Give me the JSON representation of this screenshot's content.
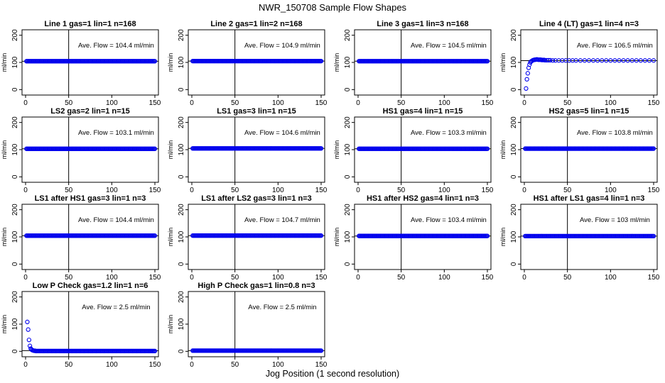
{
  "figure": {
    "title": "NWR_150708  Sample Flow Shapes",
    "xlabel": "Jog Position (1 second resolution)"
  },
  "chart_data": [
    {
      "type": "scatter",
      "title": "Line 1 gas=1 lin=1 n=168",
      "ylabel": "ml/min",
      "annotation": "Ave. Flow = 104.4  ml/min",
      "xlim": [
        0,
        150
      ],
      "ylim": [
        -20,
        220
      ],
      "xticks": [
        0,
        50,
        100,
        150
      ],
      "yticks": [
        0,
        100,
        200
      ],
      "hline": 104.4,
      "vline": 50,
      "series": [
        {
          "x_range": [
            1,
            150
          ],
          "y_const": 104.4
        }
      ]
    },
    {
      "type": "scatter",
      "title": "Line 2 gas=1 lin=2 n=168",
      "ylabel": "ml/min",
      "annotation": "Ave. Flow = 104.9  ml/min",
      "xlim": [
        0,
        150
      ],
      "ylim": [
        -20,
        220
      ],
      "xticks": [
        0,
        50,
        100,
        150
      ],
      "yticks": [
        0,
        100,
        200
      ],
      "hline": 104.9,
      "vline": 50,
      "series": [
        {
          "x_range": [
            1,
            150
          ],
          "y_const": 104.9
        }
      ]
    },
    {
      "type": "scatter",
      "title": "Line 3 gas=1 lin=3 n=168",
      "ylabel": "ml/min",
      "annotation": "Ave. Flow = 104.5  ml/min",
      "xlim": [
        0,
        150
      ],
      "ylim": [
        -20,
        220
      ],
      "xticks": [
        0,
        50,
        100,
        150
      ],
      "yticks": [
        0,
        100,
        200
      ],
      "hline": 104.5,
      "vline": 50,
      "series": [
        {
          "x_range": [
            1,
            150
          ],
          "y_const": 104.5
        }
      ]
    },
    {
      "type": "scatter",
      "title": "Line 4 (LT) gas=1 lin=4 n=3",
      "ylabel": "ml/min",
      "annotation": "Ave. Flow = 106.5  ml/min",
      "xlim": [
        0,
        150
      ],
      "ylim": [
        -20,
        220
      ],
      "xticks": [
        0,
        50,
        100,
        150
      ],
      "yticks": [
        0,
        100,
        200
      ],
      "hline": 106.5,
      "vline": 50,
      "series": [
        {
          "x_range": [
            1,
            150
          ],
          "y_const": 106.5,
          "points": [
            [
              2,
              4
            ],
            [
              3,
              38
            ],
            [
              4,
              60
            ],
            [
              5,
              80
            ],
            [
              6,
              92
            ],
            [
              7,
              100
            ],
            [
              8,
              104
            ],
            [
              9,
              106
            ],
            [
              10,
              108
            ],
            [
              11,
              109
            ],
            [
              12,
              110
            ],
            [
              13,
              110
            ],
            [
              14,
              111
            ],
            [
              15,
              111
            ],
            [
              16,
              110
            ],
            [
              17,
              110
            ],
            [
              18,
              110
            ],
            [
              19,
              110
            ],
            [
              20,
              109
            ],
            [
              21,
              109
            ],
            [
              22,
              109
            ],
            [
              23,
              109
            ],
            [
              24,
              108
            ],
            [
              26,
              108
            ],
            [
              28,
              108
            ],
            [
              30,
              108
            ],
            [
              33,
              107
            ],
            [
              36,
              107
            ],
            [
              40,
              107
            ],
            [
              44,
              107
            ],
            [
              48,
              107
            ],
            [
              52,
              107
            ],
            [
              56,
              107
            ],
            [
              60,
              107
            ],
            [
              65,
              107
            ],
            [
              70,
              107
            ],
            [
              75,
              107
            ],
            [
              80,
              107
            ],
            [
              85,
              107
            ],
            [
              90,
              107
            ],
            [
              95,
              107
            ],
            [
              100,
              107
            ],
            [
              105,
              107
            ],
            [
              110,
              107
            ],
            [
              115,
              107
            ],
            [
              120,
              107
            ],
            [
              125,
              107
            ],
            [
              130,
              107
            ],
            [
              135,
              107
            ],
            [
              140,
              107
            ],
            [
              145,
              107
            ],
            [
              150,
              107
            ]
          ]
        }
      ]
    },
    {
      "type": "scatter",
      "title": "LS2 gas=2 lin=1 n=15",
      "ylabel": "ml/min",
      "annotation": "Ave. Flow = 103.1  ml/min",
      "xlim": [
        0,
        150
      ],
      "ylim": [
        -20,
        220
      ],
      "xticks": [
        0,
        50,
        100,
        150
      ],
      "yticks": [
        0,
        100,
        200
      ],
      "hline": 103.1,
      "vline": 50,
      "series": [
        {
          "x_range": [
            1,
            150
          ],
          "y_const": 103.1
        }
      ]
    },
    {
      "type": "scatter",
      "title": "LS1 gas=3 lin=1 n=15",
      "ylabel": "ml/min",
      "annotation": "Ave. Flow = 104.6  ml/min",
      "xlim": [
        0,
        150
      ],
      "ylim": [
        -20,
        220
      ],
      "xticks": [
        0,
        50,
        100,
        150
      ],
      "yticks": [
        0,
        100,
        200
      ],
      "hline": 104.6,
      "vline": 50,
      "series": [
        {
          "x_range": [
            1,
            150
          ],
          "y_const": 104.6
        }
      ]
    },
    {
      "type": "scatter",
      "title": "HS1 gas=4 lin=1 n=15",
      "ylabel": "ml/min",
      "annotation": "Ave. Flow = 103.3  ml/min",
      "xlim": [
        0,
        150
      ],
      "ylim": [
        -20,
        220
      ],
      "xticks": [
        0,
        50,
        100,
        150
      ],
      "yticks": [
        0,
        100,
        200
      ],
      "hline": 103.3,
      "vline": 50,
      "series": [
        {
          "x_range": [
            1,
            150
          ],
          "y_const": 103.3
        }
      ]
    },
    {
      "type": "scatter",
      "title": "HS2 gas=5 lin=1 n=15",
      "ylabel": "ml/min",
      "annotation": "Ave. Flow = 103.8  ml/min",
      "xlim": [
        0,
        150
      ],
      "ylim": [
        -20,
        220
      ],
      "xticks": [
        0,
        50,
        100,
        150
      ],
      "yticks": [
        0,
        100,
        200
      ],
      "hline": 103.8,
      "vline": 50,
      "series": [
        {
          "x_range": [
            1,
            150
          ],
          "y_const": 103.8
        }
      ]
    },
    {
      "type": "scatter",
      "title": "LS1 after HS1 gas=3 lin=1 n=3",
      "ylabel": "ml/min",
      "annotation": "Ave. Flow = 104.4  ml/min",
      "xlim": [
        0,
        150
      ],
      "ylim": [
        -20,
        220
      ],
      "xticks": [
        0,
        50,
        100,
        150
      ],
      "yticks": [
        0,
        100,
        200
      ],
      "hline": 104.4,
      "vline": 50,
      "series": [
        {
          "x_range": [
            1,
            150
          ],
          "y_const": 104.4
        }
      ]
    },
    {
      "type": "scatter",
      "title": "LS1 after LS2 gas=3 lin=1 n=3",
      "ylabel": "ml/min",
      "annotation": "Ave. Flow = 104.7  ml/min",
      "xlim": [
        0,
        150
      ],
      "ylim": [
        -20,
        220
      ],
      "xticks": [
        0,
        50,
        100,
        150
      ],
      "yticks": [
        0,
        100,
        200
      ],
      "hline": 104.7,
      "vline": 50,
      "series": [
        {
          "x_range": [
            1,
            150
          ],
          "y_const": 104.7
        }
      ]
    },
    {
      "type": "scatter",
      "title": "HS1 after HS2 gas=4 lin=1 n=3",
      "ylabel": "ml/min",
      "annotation": "Ave. Flow = 103.4  ml/min",
      "xlim": [
        0,
        150
      ],
      "ylim": [
        -20,
        220
      ],
      "xticks": [
        0,
        50,
        100,
        150
      ],
      "yticks": [
        0,
        100,
        200
      ],
      "hline": 103.4,
      "vline": 50,
      "series": [
        {
          "x_range": [
            1,
            150
          ],
          "y_const": 103.4
        }
      ]
    },
    {
      "type": "scatter",
      "title": "HS1 after LS1 gas=4 lin=1 n=3",
      "ylabel": "ml/min",
      "annotation": "Ave. Flow = 103  ml/min",
      "xlim": [
        0,
        150
      ],
      "ylim": [
        -20,
        220
      ],
      "xticks": [
        0,
        50,
        100,
        150
      ],
      "yticks": [
        0,
        100,
        200
      ],
      "hline": 103,
      "vline": 50,
      "series": [
        {
          "x_range": [
            1,
            150
          ],
          "y_const": 103
        }
      ]
    },
    {
      "type": "scatter",
      "title": "Low P Check gas=1.2 lin=1 n=6",
      "ylabel": "ml/min",
      "annotation": "Ave. Flow =  2.5  ml/min",
      "xlim": [
        0,
        150
      ],
      "ylim": [
        -20,
        220
      ],
      "xticks": [
        0,
        50,
        100,
        150
      ],
      "yticks": [
        0,
        100,
        200
      ],
      "hline": 2.5,
      "vline": 50,
      "series": [
        {
          "x_range": [
            1,
            150
          ],
          "y_const": 1,
          "points": [
            [
              2,
              108
            ],
            [
              3,
              80
            ],
            [
              4,
              42
            ],
            [
              5,
              20
            ],
            [
              6,
              10
            ],
            [
              7,
              6
            ],
            [
              8,
              4
            ],
            [
              9,
              3
            ],
            [
              10,
              2
            ],
            [
              11,
              2
            ],
            [
              12,
              1
            ],
            [
              13,
              1
            ],
            [
              14,
              1
            ],
            [
              15,
              1
            ]
          ]
        }
      ]
    },
    {
      "type": "scatter",
      "title": "High P Check gas=1 lin=0.8 n=3",
      "ylabel": "ml/min",
      "annotation": "Ave. Flow =  2.5  ml/min",
      "xlim": [
        0,
        150
      ],
      "ylim": [
        -20,
        220
      ],
      "xticks": [
        0,
        50,
        100,
        150
      ],
      "yticks": [
        0,
        100,
        200
      ],
      "hline": 2.5,
      "vline": 50,
      "series": [
        {
          "x_range": [
            1,
            150
          ],
          "y_const": 2.5
        }
      ]
    }
  ],
  "colors": {
    "points": "#0000ee",
    "frame": "#000000",
    "background": "#ffffff"
  }
}
